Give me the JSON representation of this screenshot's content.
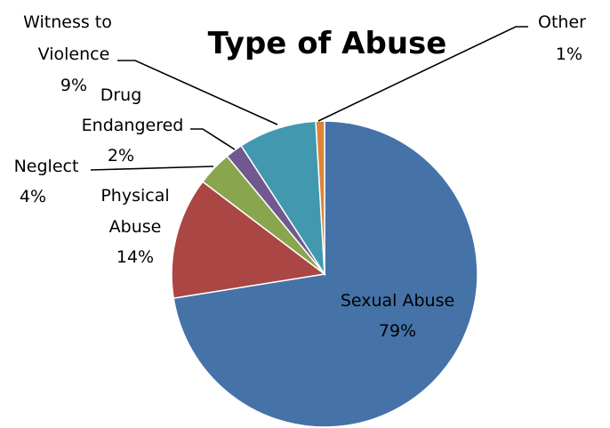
{
  "chart_data": {
    "type": "pie",
    "title": "Type of Abuse",
    "slices": [
      {
        "name": "Sexual Abuse",
        "value": 79,
        "label": "79%",
        "color": "#4572A7"
      },
      {
        "name": "Physical Abuse",
        "value": 14,
        "label": "14%",
        "color": "#AA4643"
      },
      {
        "name": "Neglect",
        "value": 4,
        "label": "4%",
        "color": "#89A54E"
      },
      {
        "name": "Drug Endangered",
        "value": 2,
        "label": "2%",
        "color": "#71588F"
      },
      {
        "name": "Witness to Violence",
        "value": 9,
        "label": "9%",
        "color": "#4198AF"
      },
      {
        "name": "Other",
        "value": 1,
        "label": "1%",
        "color": "#DB843D"
      }
    ],
    "legend": "none"
  },
  "labels": {
    "sexual_name": "Sexual Abuse",
    "sexual_pct": "79%",
    "physical_line1": "Physical",
    "physical_line2": "Abuse",
    "physical_pct": "14%",
    "neglect_name": "Neglect",
    "neglect_pct": "4%",
    "drug_line1": "Drug",
    "drug_line2": "Endangered",
    "drug_pct": "2%",
    "witness_line1": "Witness to",
    "witness_line2": "Violence",
    "witness_pct": "9%",
    "other_name": "Other",
    "other_pct": "1%"
  }
}
